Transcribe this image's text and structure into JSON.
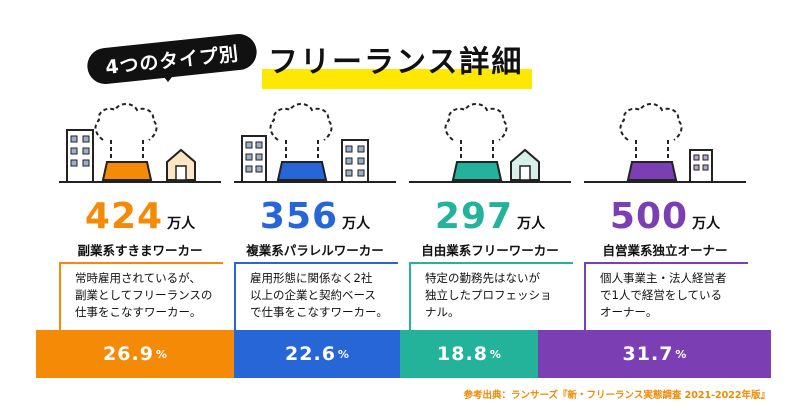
{
  "header": {
    "badge": "4つのタイプ別",
    "title": "フリーランス詳細"
  },
  "unit": "万人",
  "percent_sign": "%",
  "types": [
    {
      "label": "副業系すきまワーカー",
      "value": "424",
      "share": "26.9",
      "desc": "常時雇用されているが、\n副業としてフリーランスの\n仕事をこなすワーカー。",
      "color": "#f58a07"
    },
    {
      "label": "複業系パラレルワーカー",
      "value": "356",
      "share": "22.6",
      "desc": "雇用形態に関係なく2社\n以上の企業と契約ベース\nで仕事をこなすワーカー。",
      "color": "#2766d6"
    },
    {
      "label": "自由業系フリーワーカー",
      "value": "297",
      "share": "18.8",
      "desc": "特定の勤務先はないが\n独立したプロフェッショ\nナル。",
      "color": "#22b39a"
    },
    {
      "label": "自営業系独立オーナー",
      "value": "500",
      "share": "31.7",
      "desc": "個人事業主・法人経営者\nで1人で経営をしている\nオーナー。",
      "color": "#7b3fb3"
    }
  ],
  "chart_data": {
    "type": "bar",
    "categories": [
      "副業系すきまワーカー",
      "複業系パラレルワーカー",
      "自由業系フリーワーカー",
      "自営業系独立オーナー"
    ],
    "series": [
      {
        "name": "万人",
        "values": [
          424,
          356,
          297,
          500
        ]
      },
      {
        "name": "%",
        "values": [
          26.9,
          22.6,
          18.8,
          31.7
        ]
      }
    ]
  },
  "source": "参考出典：ランサーズ『新・フリーランス実態調査 2021-2022年版』"
}
